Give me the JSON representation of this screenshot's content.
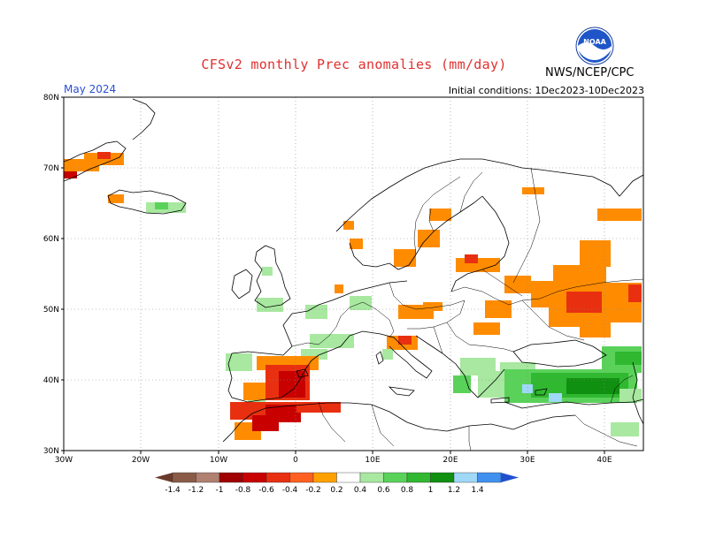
{
  "title": "CFSv2 monthly Prec anomalies (mm/day)",
  "agency": "NWS/NCEP/CPC",
  "logo_text": "NOAA",
  "month_label": "May 2024",
  "initial_conditions": "Initial conditions: 1Dec2023-10Dec2023",
  "colors": {
    "title": "#e03030",
    "month": "#2a4fd6",
    "dry_strong": "#c80000",
    "dry": "#ff8c00",
    "wet": "#5ad25a",
    "wet_strong": "#18a818"
  },
  "chart_data": {
    "type": "heatmap",
    "lon_range": [
      -30,
      45
    ],
    "lat_range": [
      30,
      80
    ],
    "y_tick_labels": [
      "80N",
      "70N",
      "60N",
      "50N",
      "40N",
      "30N"
    ],
    "x_tick_labels": [
      "30W",
      "20W",
      "10W",
      "0",
      "10E",
      "20E",
      "30E",
      "40E"
    ],
    "colorbar": {
      "labels": [
        "-1.4",
        "-1.2",
        "-1",
        "-0.8",
        "-0.6",
        "-0.4",
        "-0.2",
        "0.2",
        "0.4",
        "0.6",
        "0.8",
        "1",
        "1.2",
        "1.4"
      ],
      "colors": [
        "#6b3a2a",
        "#8a5c48",
        "#b08070",
        "#a00000",
        "#c80000",
        "#e83010",
        "#ff6020",
        "#ffa000",
        "#ffffff",
        "#a8e8a0",
        "#5ad25a",
        "#30b830",
        "#109010",
        "#a0d8f8",
        "#4090f0",
        "#2050d0"
      ]
    },
    "regions": [
      {
        "name": "Iberia (central/east)",
        "anomaly": -0.6
      },
      {
        "name": "Iberia (west)",
        "anomaly": -0.4
      },
      {
        "name": "North Africa (Morocco/Algeria)",
        "anomaly": -0.6
      },
      {
        "name": "Iceland (north)",
        "anomaly": -0.4
      },
      {
        "name": "Iceland (south)",
        "anomaly": 0.4
      },
      {
        "name": "Greenland SE coast",
        "anomaly": -0.4
      },
      {
        "name": "Scandinavia interior",
        "anomaly": -0.4
      },
      {
        "name": "Baltic / Finland",
        "anomaly": -0.4
      },
      {
        "name": "Western Russia",
        "anomaly": -0.4
      },
      {
        "name": "Southern Russia / Kazakhstan",
        "anomaly": -0.6
      },
      {
        "name": "Italy (central)",
        "anomaly": -0.6
      },
      {
        "name": "Central Europe (Germany/Poland)",
        "anomaly": -0.4
      },
      {
        "name": "Turkey / Anatolia",
        "anomaly": 0.6
      },
      {
        "name": "Balkans / Greece",
        "anomaly": 0.4
      },
      {
        "name": "Caucasus",
        "anomaly": 0.8
      },
      {
        "name": "Western France / UK",
        "anomaly": 0.2
      },
      {
        "name": "Eastern Turkey (central)",
        "anomaly": 1.0
      }
    ]
  }
}
